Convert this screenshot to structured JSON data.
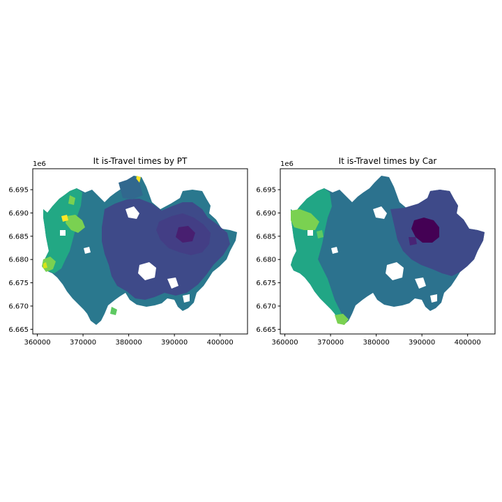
{
  "colormap": [
    "#440154",
    "#3b528b",
    "#21918c",
    "#5ec962",
    "#fde725"
  ],
  "chart_data": [
    {
      "type": "heatmap",
      "title": "It is-Travel times by PT",
      "x_ticks": [
        "360000",
        "370000",
        "380000",
        "390000",
        "400000"
      ],
      "y_ticks": [
        "6.665",
        "6.670",
        "6.675",
        "6.680",
        "6.685",
        "6.690",
        "6.695"
      ],
      "y_offset_label": "1e6",
      "xlim": [
        359000,
        406000
      ],
      "ylim": [
        6664000,
        6699500
      ],
      "grid": false,
      "color_levels": [
        {
          "color": "#433e85",
          "region": "east / center (shortest)"
        },
        {
          "color": "#3e4a89",
          "region": "center"
        },
        {
          "color": "#2a788e",
          "region": "north & south"
        },
        {
          "color": "#22a884",
          "region": "west"
        },
        {
          "color": "#7ad151",
          "region": "far west edges"
        },
        {
          "color": "#fde725",
          "region": "isolated extremes"
        }
      ]
    },
    {
      "type": "heatmap",
      "title": "It is-Travel times by Car",
      "x_ticks": [
        "360000",
        "370000",
        "380000",
        "390000",
        "400000"
      ],
      "y_ticks": [
        "6.665",
        "6.670",
        "6.675",
        "6.680",
        "6.685",
        "6.690",
        "6.695"
      ],
      "y_offset_label": "1e6",
      "xlim": [
        359000,
        406000
      ],
      "ylim": [
        6664000,
        6699500
      ],
      "grid": false,
      "color_levels": [
        {
          "color": "#440154",
          "region": "city center core (shortest)"
        },
        {
          "color": "#3e4a89",
          "region": "eastern half"
        },
        {
          "color": "#2c728e",
          "region": "central & north"
        },
        {
          "color": "#21a685",
          "region": "western half"
        },
        {
          "color": "#7ad151",
          "region": "far west & south tip"
        }
      ]
    }
  ]
}
